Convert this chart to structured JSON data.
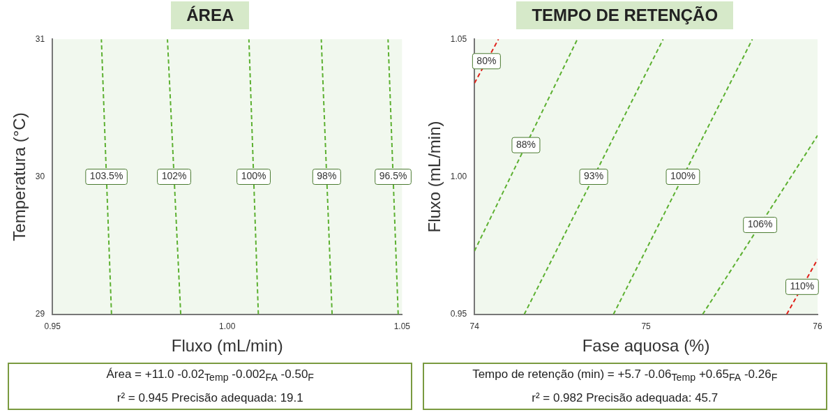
{
  "chart_data": [
    {
      "type": "line",
      "title": "ÁREA",
      "xlabel": "Fluxo (mL/min)",
      "ylabel": "Temperatura (°C)",
      "xlim": [
        0.95,
        1.05
      ],
      "xticks": [
        0.95,
        {
          "value": 1,
          "label": "1.00"
        },
        1.05
      ],
      "ylim": [
        29,
        31
      ],
      "yticks": [
        29,
        30,
        31
      ],
      "line_style": "dashed",
      "marker": "none",
      "series": [
        {
          "name": "103.5%",
          "color": "#5cb030",
          "x": [
            0.9669,
            0.964
          ],
          "values": [
            29,
            31
          ]
        },
        {
          "name": "102%",
          "color": "#5cb030",
          "x": [
            0.9867,
            0.9829
          ],
          "values": [
            29,
            31
          ]
        },
        {
          "name": "100%",
          "color": "#5cb030",
          "x": [
            1.0089,
            1.0062
          ],
          "values": [
            29,
            31
          ]
        },
        {
          "name": "98%",
          "color": "#5cb030",
          "x": [
            1.03,
            1.0269
          ],
          "values": [
            29,
            31
          ]
        },
        {
          "name": "96.5%",
          "color": "#5cb030",
          "x": [
            1.0489,
            1.046
          ],
          "values": [
            29,
            31
          ]
        }
      ],
      "annotations": [
        "Área = +11.0 -0.02$_{Temp}$ -0.002$_{FA}$ -0.50$_{F}$",
        "r² = 0.945   Precisão adequada: 19.1"
      ]
    },
    {
      "type": "line",
      "title": "TEMPO DE RETENÇÃO",
      "xlabel": "Fase aquosa (%)",
      "ylabel": "Fluxo (mL/min)",
      "xlim": [
        74,
        76
      ],
      "xticks": [
        74,
        75,
        76
      ],
      "ylim": [
        0.95,
        1.05
      ],
      "yticks": [
        0.95,
        {
          "value": 1,
          "label": "1.00"
        },
        1.05
      ],
      "line_style": "dashed",
      "marker": "none",
      "series": [
        {
          "name": "80%",
          "color": "#e0201a",
          "x": [
            74,
            74.14
          ],
          "values": [
            1.034,
            1.05
          ]
        },
        {
          "name": "88%",
          "color": "#5cb030",
          "x": [
            74,
            74.6
          ],
          "values": [
            0.973,
            1.05
          ]
        },
        {
          "name": "93%",
          "color": "#5cb030",
          "x": [
            74.29,
            75.1
          ],
          "values": [
            0.95,
            1.05
          ]
        },
        {
          "name": "100%",
          "color": "#5cb030",
          "x": [
            74.81,
            75.62
          ],
          "values": [
            0.95,
            1.05
          ]
        },
        {
          "name": "106%",
          "color": "#5cb030",
          "x": [
            75.33,
            76
          ],
          "values": [
            0.95,
            1.015
          ]
        },
        {
          "name": "110%",
          "color": "#e0201a",
          "x": [
            75.82,
            76
          ],
          "values": [
            0.95,
            0.97
          ]
        }
      ],
      "annotations": [
        "Tempo de retenção (min) = +5.7 -0.06$_{Temp}$ +0.65$_{FA}$ -0.26$_{F}$",
        "r² = 0.982   Precisão adequada: 45.7"
      ]
    }
  ]
}
